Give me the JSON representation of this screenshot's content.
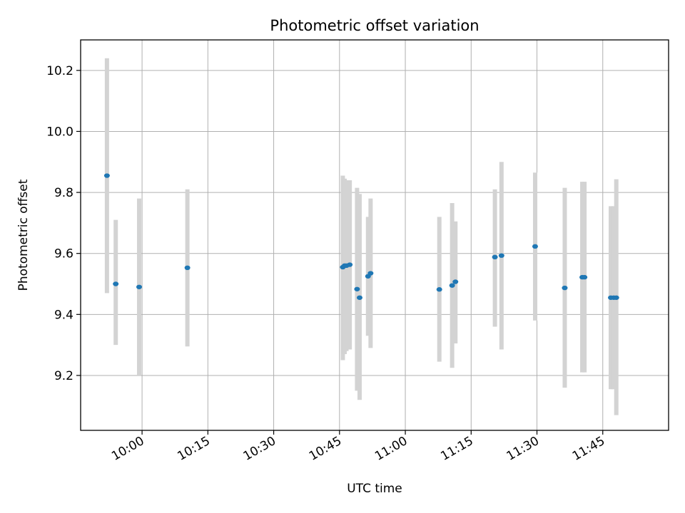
{
  "chart_data": {
    "type": "scatter",
    "title": "Photometric offset variation",
    "xlabel": "UTC time",
    "ylabel": "Photometric offset",
    "grid": true,
    "xlim": [
      "09:46",
      "12:00"
    ],
    "ylim": [
      9.02,
      10.3
    ],
    "xticks": [
      "10:00",
      "10:15",
      "10:30",
      "10:45",
      "11:00",
      "11:15",
      "11:30",
      "11:45"
    ],
    "yticks": [
      "9.2",
      "9.4",
      "9.6",
      "9.8",
      "10.0",
      "10.2"
    ],
    "colors": {
      "points": "#1f77b4",
      "error_bars": "#d3d3d3",
      "grid": "#b0b0b0"
    },
    "series": [
      {
        "points": [
          {
            "x": "09:52:00",
            "y": 9.855,
            "ylow": 9.47,
            "yhigh": 10.24
          },
          {
            "x": "09:54:00",
            "y": 9.5,
            "ylow": 9.3,
            "yhigh": 9.71
          },
          {
            "x": "09:59:20",
            "y": 9.49,
            "ylow": 9.2,
            "yhigh": 9.78
          },
          {
            "x": "10:10:20",
            "y": 9.553,
            "ylow": 9.295,
            "yhigh": 9.81
          },
          {
            "x": "10:45:45",
            "y": 9.555,
            "ylow": 9.25,
            "yhigh": 9.855
          },
          {
            "x": "10:46:10",
            "y": 9.56,
            "ylow": 9.27,
            "yhigh": 9.845
          },
          {
            "x": "10:46:35",
            "y": 9.56,
            "ylow": 9.28,
            "yhigh": 9.84
          },
          {
            "x": "10:47:20",
            "y": 9.563,
            "ylow": 9.285,
            "yhigh": 9.84
          },
          {
            "x": "10:49:00",
            "y": 9.483,
            "ylow": 9.15,
            "yhigh": 9.815
          },
          {
            "x": "10:49:35",
            "y": 9.455,
            "ylow": 9.12,
            "yhigh": 9.795
          },
          {
            "x": "10:51:30",
            "y": 9.525,
            "ylow": 9.33,
            "yhigh": 9.72
          },
          {
            "x": "10:52:05",
            "y": 9.535,
            "ylow": 9.29,
            "yhigh": 9.78
          },
          {
            "x": "11:07:45",
            "y": 9.482,
            "ylow": 9.245,
            "yhigh": 9.72
          },
          {
            "x": "11:10:40",
            "y": 9.495,
            "ylow": 9.225,
            "yhigh": 9.765
          },
          {
            "x": "11:11:25",
            "y": 9.507,
            "ylow": 9.305,
            "yhigh": 9.705
          },
          {
            "x": "11:20:25",
            "y": 9.588,
            "ylow": 9.36,
            "yhigh": 9.81
          },
          {
            "x": "11:21:55",
            "y": 9.593,
            "ylow": 9.285,
            "yhigh": 9.9
          },
          {
            "x": "11:29:35",
            "y": 9.623,
            "ylow": 9.38,
            "yhigh": 9.865
          },
          {
            "x": "11:36:20",
            "y": 9.487,
            "ylow": 9.16,
            "yhigh": 9.815
          },
          {
            "x": "11:40:20",
            "y": 9.522,
            "ylow": 9.21,
            "yhigh": 9.835
          },
          {
            "x": "11:40:50",
            "y": 9.522,
            "ylow": 9.21,
            "yhigh": 9.835
          },
          {
            "x": "11:46:50",
            "y": 9.455,
            "ylow": 9.155,
            "yhigh": 9.755
          },
          {
            "x": "11:47:30",
            "y": 9.455,
            "ylow": 9.155,
            "yhigh": 9.755
          },
          {
            "x": "11:48:05",
            "y": 9.455,
            "ylow": 9.07,
            "yhigh": 9.843
          }
        ]
      }
    ]
  }
}
